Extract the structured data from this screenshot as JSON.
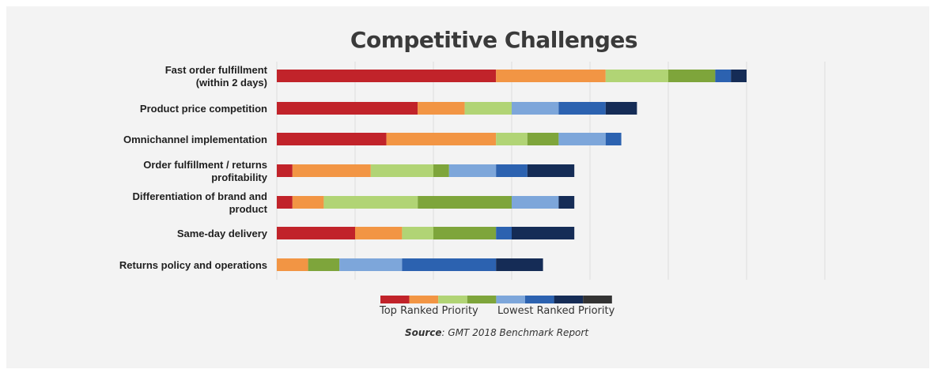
{
  "chart_data": {
    "type": "bar",
    "orientation": "horizontal",
    "stacked": true,
    "title": "Competitive Challenges",
    "categories": [
      [
        "Fast order fulfillment",
        "(within 2 days)"
      ],
      [
        "Product price competition"
      ],
      [
        "Omnichannel implementation"
      ],
      [
        "Order fulfillment / returns",
        "profitability"
      ],
      [
        "Differentiation of brand and",
        "product"
      ],
      [
        "Same-day delivery"
      ],
      [
        "Returns policy and operations"
      ]
    ],
    "series": [
      {
        "color": "#c1232a",
        "values": [
          14,
          9,
          7,
          1,
          1,
          5,
          0
        ]
      },
      {
        "color": "#f29544",
        "values": [
          7,
          3,
          7,
          5,
          2,
          3,
          2
        ]
      },
      {
        "color": "#b1d475",
        "values": [
          4,
          3,
          2,
          4,
          6,
          2,
          0
        ]
      },
      {
        "color": "#7ea53b",
        "values": [
          3,
          0,
          2,
          1,
          6,
          4,
          2
        ]
      },
      {
        "color": "#7da6da",
        "values": [
          0,
          3,
          3,
          3,
          3,
          0,
          4
        ]
      },
      {
        "color": "#2c62b0",
        "values": [
          1,
          3,
          1,
          2,
          0,
          1,
          6
        ]
      },
      {
        "color": "#152c56",
        "values": [
          1,
          2,
          0,
          3,
          1,
          4,
          3
        ]
      }
    ],
    "xlim": [
      0,
      35
    ],
    "grid": true,
    "legend": {
      "position": "bottom",
      "colors": [
        "#c1232a",
        "#f29544",
        "#b1d475",
        "#7ea53b",
        "#7da6da",
        "#2c62b0",
        "#152c56",
        "#333333"
      ],
      "low_label": "Top Ranked Priority",
      "high_label": "Lowest Ranked Priority"
    }
  },
  "source": {
    "label": "Source",
    "text": ": GMT 2018 Benchmark Report"
  }
}
